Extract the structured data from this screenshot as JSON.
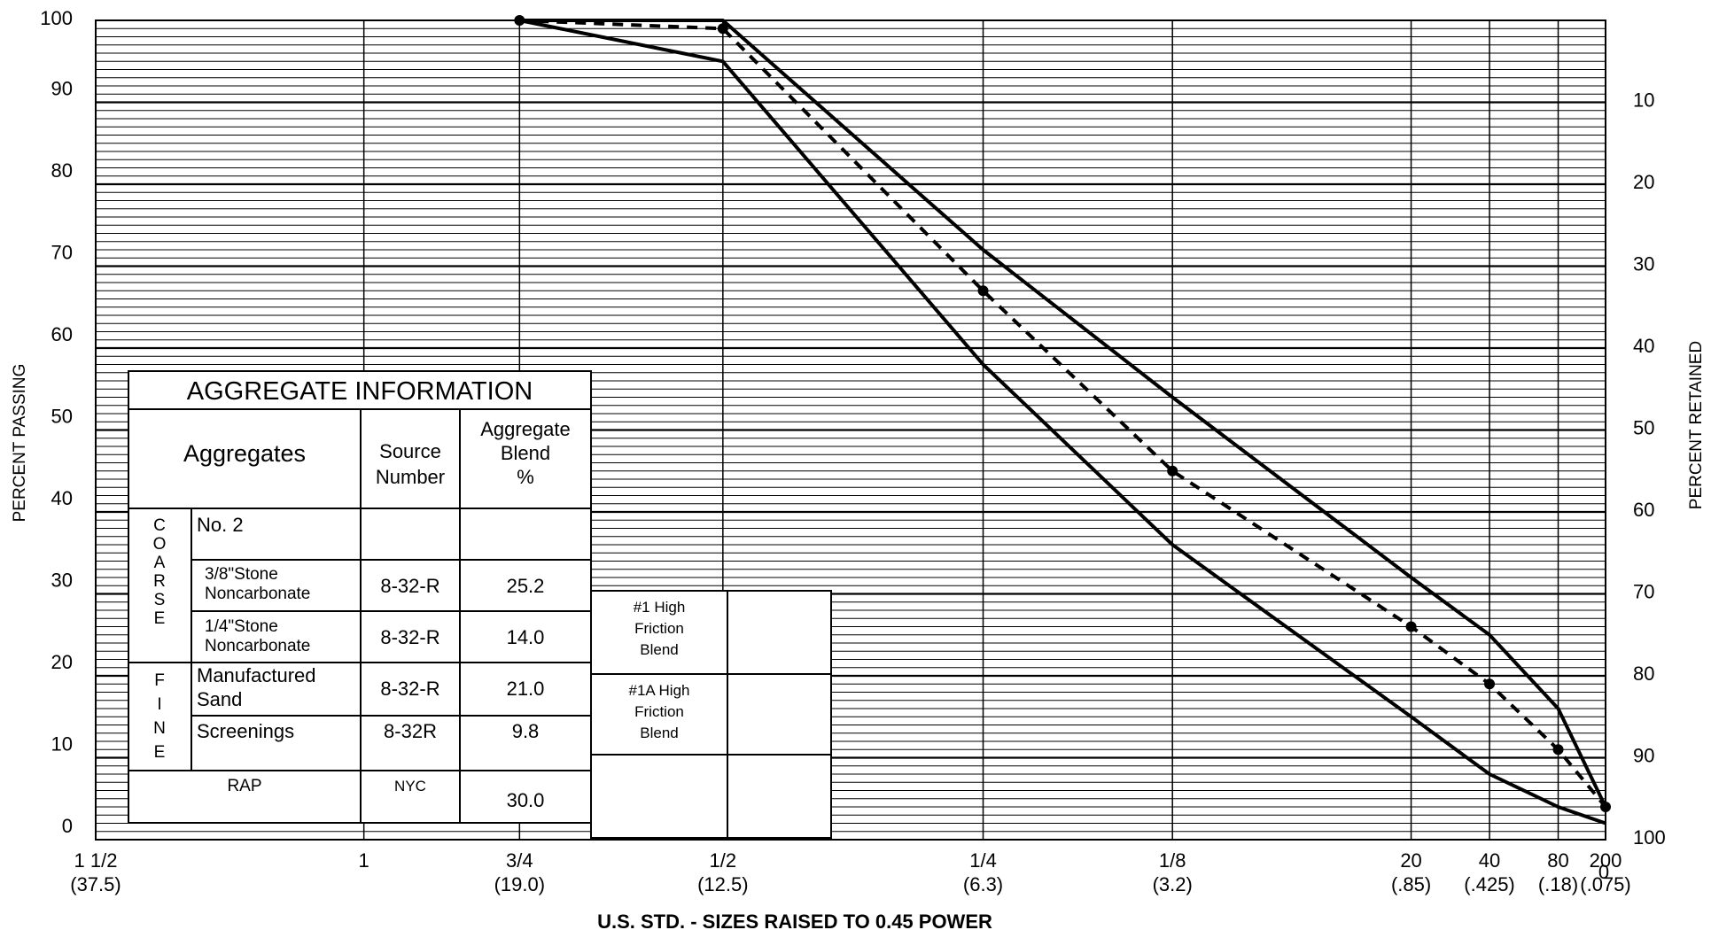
{
  "chart_data": {
    "type": "line",
    "ylabel_left": "PERCENT PASSING",
    "ylabel_right": "PERCENT RETAINED",
    "xlabel": "U.S. STD. - SIZES RAISED TO 0.45 POWER",
    "ylim": [
      0,
      100
    ],
    "x_scale": "sieve size (mm) raised to 0.45 power",
    "grid": true,
    "x_ticks": [
      {
        "size": 37.5,
        "top": "1 1/2",
        "bottom": "(37.5)"
      },
      {
        "size": 25.0,
        "top": "1",
        "bottom": ""
      },
      {
        "size": 19.0,
        "top": "3/4",
        "bottom": "(19.0)"
      },
      {
        "size": 12.5,
        "top": "1/2",
        "bottom": "(12.5)"
      },
      {
        "size": 6.3,
        "top": "1/4",
        "bottom": "(6.3)"
      },
      {
        "size": 3.2,
        "top": "1/8",
        "bottom": "(3.2)"
      },
      {
        "size": 0.85,
        "top": "20",
        "bottom": "(.85)"
      },
      {
        "size": 0.425,
        "top": "40",
        "bottom": "(.425)"
      },
      {
        "size": 0.18,
        "top": "80",
        "bottom": "(.18)"
      },
      {
        "size": 0.075,
        "top": "200",
        "bottom": "(.075)"
      }
    ],
    "y_ticks_left": [
      "0",
      "10",
      "20",
      "30",
      "40",
      "50",
      "60",
      "70",
      "80",
      "90",
      "100"
    ],
    "y_ticks_right": [
      "100",
      "90",
      "80",
      "70",
      "60",
      "50",
      "40",
      "30",
      "20",
      "10",
      "0"
    ],
    "series": [
      {
        "style": "solid",
        "x": [
          19.0,
          12.5,
          6.3,
          3.2,
          0.85,
          0.425,
          0.18,
          0.075
        ],
        "y": [
          100,
          100,
          72,
          54,
          32,
          25,
          16,
          4
        ]
      },
      {
        "style": "solid",
        "x": [
          19.0,
          12.5,
          6.3,
          3.2,
          0.85,
          0.425,
          0.18,
          0.075
        ],
        "y": [
          100,
          95,
          58,
          36,
          15,
          8,
          4,
          2
        ]
      },
      {
        "style": "dashed",
        "markers": true,
        "x": [
          19.0,
          12.5,
          6.3,
          3.2,
          0.85,
          0.425,
          0.18,
          0.075
        ],
        "y": [
          100,
          99,
          67,
          45,
          26,
          19,
          11,
          4
        ]
      }
    ]
  },
  "aggregate_table": {
    "title": "AGGREGATE INFORMATION",
    "headers": [
      "Aggregates",
      "Source\nNumber",
      "Aggregate\nBlend\n%"
    ],
    "coarse_label": "COARSE",
    "fine_label": "FINE",
    "rows": [
      {
        "name": "No. 2",
        "source": "",
        "blend": ""
      },
      {
        "name": "3/8\"Stone\nNoncarbonate",
        "source": "8-32-R",
        "blend": "25.2"
      },
      {
        "name": "1/4\"Stone\nNoncarbonate",
        "source": "8-32-R",
        "blend": "14.0"
      },
      {
        "name": "Manufactured\nSand",
        "source": "8-32-R",
        "blend": "21.0"
      },
      {
        "name": "Screenings",
        "source": "8-32R",
        "blend": "9.8"
      },
      {
        "name": "RAP",
        "source": "NYC",
        "blend": "30.0"
      }
    ]
  },
  "blend_table": {
    "rows": [
      "#1 High\nFriction\nBlend",
      "#1A High\nFriction\nBlend",
      ""
    ]
  }
}
